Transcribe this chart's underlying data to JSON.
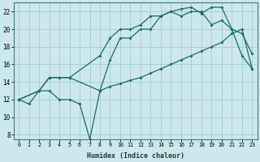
{
  "xlabel": "Humidex (Indice chaleur)",
  "bg_color": "#cce8ec",
  "grid_color": "#a8d0d4",
  "line_color": "#1a6b6b",
  "line1": {
    "x": [
      0,
      1,
      2,
      3,
      4,
      5,
      6,
      7,
      8,
      9,
      10,
      11,
      12,
      13,
      14,
      15,
      16,
      17,
      18,
      19,
      20,
      21,
      22,
      23
    ],
    "y": [
      12,
      11.5,
      13,
      13,
      12,
      12,
      11.5,
      7.5,
      13,
      16.5,
      19,
      19,
      20,
      20,
      21.5,
      22,
      21.5,
      22,
      22,
      20.5,
      21,
      20,
      17,
      15.5
    ]
  },
  "line2": {
    "x": [
      0,
      2,
      3,
      4,
      5,
      8,
      9,
      10,
      11,
      12,
      13,
      14,
      15,
      16,
      17,
      18,
      19,
      20,
      21,
      22,
      23
    ],
    "y": [
      12,
      13,
      14.5,
      14.5,
      14.5,
      13,
      13.5,
      13.8,
      14.2,
      14.5,
      15,
      15.5,
      16,
      16.5,
      17,
      17.5,
      18,
      18.5,
      19.5,
      20,
      15.5
    ]
  },
  "line3": {
    "x": [
      0,
      2,
      3,
      4,
      5,
      8,
      9,
      10,
      11,
      12,
      13,
      14,
      15,
      16,
      17,
      18,
      19,
      20,
      21,
      22,
      23
    ],
    "y": [
      12,
      13,
      14.5,
      14.5,
      14.5,
      17,
      19,
      20,
      20,
      20.5,
      21.5,
      21.5,
      22,
      22.3,
      22.5,
      21.8,
      22.5,
      22.5,
      20,
      19.5,
      17.2
    ]
  },
  "xlim": [
    -0.5,
    23.5
  ],
  "ylim": [
    7.5,
    23.0
  ],
  "yticks": [
    8,
    10,
    12,
    14,
    16,
    18,
    20,
    22
  ],
  "xticks": [
    0,
    1,
    2,
    3,
    4,
    5,
    6,
    7,
    8,
    9,
    10,
    11,
    12,
    13,
    14,
    15,
    16,
    17,
    18,
    19,
    20,
    21,
    22,
    23
  ]
}
